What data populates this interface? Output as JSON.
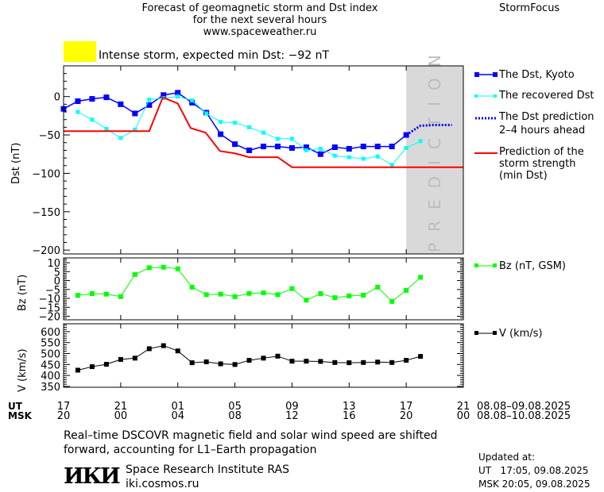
{
  "header": {
    "title_lines": [
      "Forecast of geomagnetic storm and Dst index",
      "for the next several hours",
      "www.spaceweather.ru"
    ],
    "brand": "StormFocus",
    "storm_alert": "Intense storm, expected min Dst: −92 nT",
    "alert_color": "#ffff00"
  },
  "legend": {
    "dst_kyoto": "The Dst, Kyoto",
    "recovered_dst": "The recovered Dst",
    "dst_prediction": [
      "The Dst prediction",
      "2–4 hours ahead"
    ],
    "storm_strength": [
      "Prediction of the",
      "storm strength",
      "(min Dst)"
    ],
    "bz": "Bz (nT, GSM)",
    "v": "V (km/s)"
  },
  "prediction_label": "PREDICTION",
  "time_axis": {
    "ut_label": "UT",
    "msk_label": "MSK",
    "ut_ticks": [
      "17",
      "21",
      "01",
      "05",
      "09",
      "13",
      "17",
      "21"
    ],
    "msk_ticks": [
      "20",
      "00",
      "04",
      "08",
      "12",
      "16",
      "20",
      "00"
    ],
    "ut_range": "08.08–09.08.2025",
    "msk_range": "08.08–10.08.2025"
  },
  "footer": {
    "note_lines": [
      "Real–time DSCOVR magnetic field and solar wind speed are shifted",
      "forward, accounting for L1–Earth propagation"
    ],
    "institute": "Space Research Institute RAS",
    "site": "iki.cosmos.ru",
    "logo_text": "ИКИ",
    "updated_label": "Updated at:",
    "updated_ut": "UT   17:05, 09.08.2025",
    "updated_msk": "MSK 20:05, 09.08.2025"
  },
  "chart_data": [
    {
      "type": "line",
      "ylabel": "Dst (nT)",
      "ylim": [
        -205,
        40
      ],
      "yticks": [
        0,
        -50,
        -100,
        -150,
        -200
      ],
      "x_unit": "hours from 17 UT 08.08",
      "xlim": [
        0,
        28
      ],
      "prediction_region_start": 24,
      "series": [
        {
          "name": "The Dst, Kyoto",
          "color": "#0000ff",
          "x": [
            0,
            1,
            2,
            3,
            4,
            5,
            6,
            7,
            8,
            9,
            10,
            11,
            12,
            13,
            14,
            15,
            16,
            17,
            18,
            19,
            20,
            21,
            22,
            23,
            24
          ],
          "values": [
            -16,
            -6,
            -3,
            -1,
            -10,
            -22,
            -11,
            2,
            5,
            -8,
            -21,
            -49,
            -62,
            -70,
            -65,
            -65,
            -67,
            -66,
            -75,
            -66,
            -68,
            -65,
            -65,
            -65,
            -50
          ]
        },
        {
          "name": "The recovered Dst",
          "color": "#00ffff",
          "x": [
            1,
            2,
            3,
            4,
            5,
            6,
            7,
            8,
            9,
            10,
            11,
            12,
            13,
            14,
            15,
            16,
            17,
            18,
            19,
            20,
            21,
            22,
            23,
            24,
            25
          ],
          "values": [
            -20,
            -30,
            -42,
            -54,
            -43,
            -4,
            -2,
            0,
            -5,
            -22,
            -33,
            -34,
            -40,
            -47,
            -55,
            -55,
            -70,
            -68,
            -77,
            -79,
            -81,
            -78,
            -89,
            -67,
            -58
          ]
        },
        {
          "name": "The Dst prediction 2–4 hours ahead",
          "color": "#0000ff",
          "x": [
            24,
            25,
            26,
            27.2
          ],
          "values": [
            -50,
            -38,
            -37,
            -37
          ]
        },
        {
          "name": "Prediction of the storm strength (min Dst)",
          "color": "#ff0000",
          "x": [
            0,
            6,
            6.95,
            8,
            8.9,
            9.95,
            10.95,
            12,
            13,
            15,
            16,
            28
          ],
          "values": [
            -45,
            -45,
            -1,
            -9,
            -41,
            -47,
            -71,
            -74,
            -79,
            -79,
            -92,
            -92
          ]
        }
      ]
    },
    {
      "type": "line",
      "ylabel": "Bz (nT)",
      "ylim": [
        -22,
        12.7
      ],
      "yticks": [
        10,
        5,
        0,
        -5,
        -10,
        -15,
        -20
      ],
      "xlim": [
        0,
        28
      ],
      "series": [
        {
          "name": "Bz (nT, GSM)",
          "color": "#00ff00",
          "x": [
            1,
            2,
            3,
            4,
            5,
            6,
            7,
            8,
            9,
            10,
            11,
            12,
            13,
            14,
            15,
            16,
            17,
            18,
            19,
            20,
            21,
            22,
            23,
            24,
            25
          ],
          "values": [
            -8.3,
            -7.3,
            -7.6,
            -9,
            3.4,
            7.2,
            7.5,
            6.6,
            -3.7,
            -7.9,
            -7.6,
            -9,
            -7.2,
            -6.9,
            -7.9,
            -4.5,
            -11,
            -7.3,
            -9.6,
            -8.6,
            -8.2,
            -3.7,
            -11.7,
            -5.5,
            1.8
          ]
        }
      ]
    },
    {
      "type": "line",
      "ylabel": "V (km/s)",
      "ylim": [
        346,
        636
      ],
      "yticks": [
        600,
        550,
        500,
        450,
        400,
        350
      ],
      "xlim": [
        0,
        28
      ],
      "series": [
        {
          "name": "V (km/s)",
          "color": "#000000",
          "x": [
            1,
            2,
            3,
            4,
            5,
            6,
            7,
            8,
            9,
            10,
            11,
            12,
            13,
            14,
            15,
            16,
            17,
            18,
            19,
            20,
            21,
            22,
            23,
            24,
            25
          ],
          "values": [
            424,
            440,
            451,
            473,
            479,
            522,
            536,
            512,
            458,
            462,
            453,
            450,
            469,
            479,
            488,
            465,
            465,
            464,
            459,
            458,
            459,
            461,
            459,
            469,
            487
          ]
        }
      ]
    }
  ]
}
